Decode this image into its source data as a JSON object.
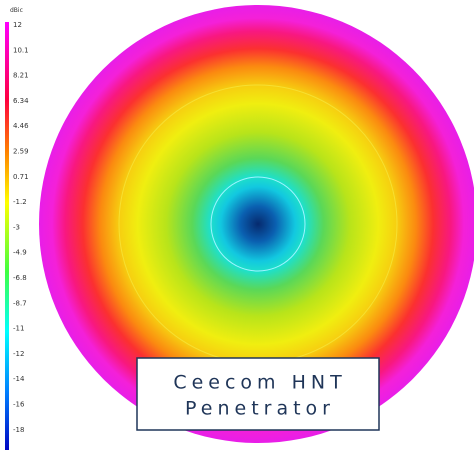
{
  "colorbar": {
    "unit": "dBic",
    "ticks": [
      "12",
      "10.1",
      "8.21",
      "6.34",
      "4.46",
      "2.59",
      "0.71",
      "-1.2",
      "-3",
      "-4.9",
      "-6.8",
      "-8.7",
      "-11",
      "-12",
      "-14",
      "-16",
      "-18"
    ]
  },
  "label": {
    "lines": [
      "Ceecom HNT",
      "Penetrator"
    ]
  }
}
